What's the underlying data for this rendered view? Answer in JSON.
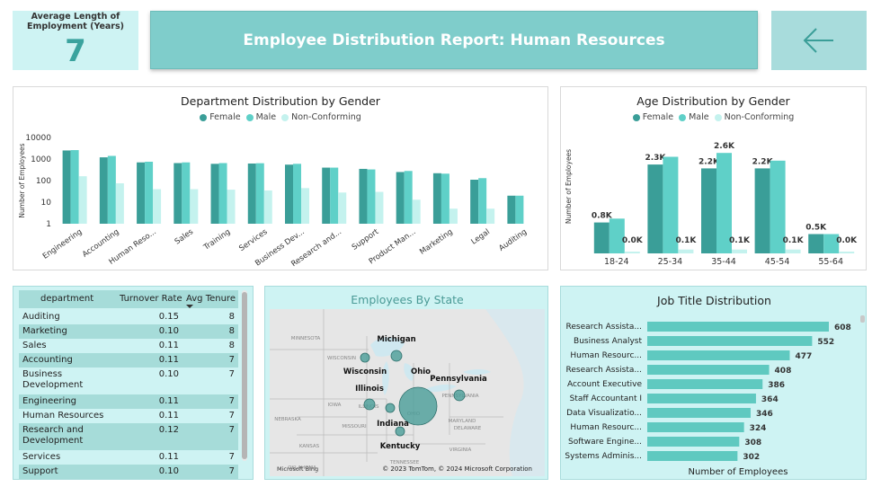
{
  "kpi": {
    "label": "Average Length of Employment (Years)",
    "value": "7"
  },
  "header": {
    "title": "Employee Distribution Report: Human Resources",
    "back_icon": "arrow-left-icon"
  },
  "colors": {
    "female": "#3a9e98",
    "male": "#5fd0c8",
    "nonconforming": "#c4f2ee",
    "teal_bg": "#cef3f3",
    "banner": "#7fcdcb",
    "bar": "#5fc9c0"
  },
  "legend": {
    "female": "Female",
    "male": "Male",
    "nonconforming": "Non-Conforming"
  },
  "dept_chart": {
    "title": "Department Distribution by Gender",
    "ylabel": "Number of Employees",
    "yticks": [
      "10000",
      "1000",
      "100",
      "10",
      "1"
    ]
  },
  "age_chart": {
    "title": "Age Distribution by Gender",
    "ylabel": "Number of Employees"
  },
  "chart_data": [
    {
      "type": "bar",
      "title": "Department Distribution by Gender",
      "ylabel": "Number of Employees",
      "yscale": "log",
      "ylim": [
        1,
        10000
      ],
      "categories": [
        "Engineering",
        "Accounting",
        "Human Reso...",
        "Sales",
        "Training",
        "Services",
        "Business Dev...",
        "Research and...",
        "Support",
        "Product Man...",
        "Marketing",
        "Legal",
        "Auditing"
      ],
      "series": [
        {
          "name": "Female",
          "values": [
            2500,
            1200,
            700,
            650,
            600,
            620,
            550,
            400,
            350,
            250,
            220,
            110,
            20
          ]
        },
        {
          "name": "Male",
          "values": [
            2600,
            1400,
            750,
            700,
            650,
            640,
            600,
            400,
            330,
            280,
            210,
            130,
            20
          ]
        },
        {
          "name": "Non-Conforming",
          "values": [
            160,
            75,
            40,
            40,
            38,
            35,
            45,
            28,
            30,
            13,
            5,
            5,
            0
          ]
        }
      ]
    },
    {
      "type": "bar",
      "title": "Age Distribution by Gender",
      "ylabel": "Number of Employees",
      "categories": [
        "18-24",
        "25-34",
        "35-44",
        "45-54",
        "55-64"
      ],
      "series": [
        {
          "name": "Female",
          "values": [
            0.8,
            2.3,
            2.2,
            2.2,
            0.5
          ],
          "labels": [
            "0.8K",
            "2.3K",
            "2.2K",
            "2.2K",
            "0.5K"
          ]
        },
        {
          "name": "Male",
          "values": [
            0.9,
            2.5,
            2.6,
            2.4,
            0.5
          ],
          "labels": [
            "",
            "",
            "2.6K",
            "",
            ""
          ]
        },
        {
          "name": "Non-Conforming",
          "values": [
            0.0,
            0.1,
            0.1,
            0.1,
            0.0
          ],
          "labels": [
            "0.0K",
            "0.1K",
            "0.1K",
            "0.1K",
            "0.0K"
          ]
        }
      ]
    },
    {
      "type": "bar",
      "title": "Job Title Distribution",
      "xlabel": "Number of Employees",
      "orientation": "horizontal",
      "categories": [
        "Research Assista...",
        "Business Analyst",
        "Human Resourc...",
        "Research Assista...",
        "Account Executive",
        "Staff Accountant I",
        "Data Visualizatio...",
        "Human Resourc...",
        "Software Engine...",
        "Systems Adminis..."
      ],
      "values": [
        608,
        552,
        477,
        408,
        386,
        364,
        346,
        324,
        308,
        302
      ]
    }
  ],
  "table": {
    "headers": [
      "department",
      "Turnover Rate",
      "Avg Tenure"
    ],
    "rows": [
      [
        "Auditing",
        "0.15",
        "8"
      ],
      [
        "Marketing",
        "0.10",
        "8"
      ],
      [
        "Sales",
        "0.11",
        "8"
      ],
      [
        "Accounting",
        "0.11",
        "7"
      ],
      [
        "Business Development",
        "0.10",
        "7"
      ],
      [
        "Engineering",
        "0.11",
        "7"
      ],
      [
        "Human Resources",
        "0.11",
        "7"
      ],
      [
        "Research and Development",
        "0.12",
        "7"
      ],
      [
        "Services",
        "0.11",
        "7"
      ],
      [
        "Support",
        "0.10",
        "7"
      ]
    ]
  },
  "map": {
    "title": "Employees By State",
    "states": [
      "Michigan",
      "Wisconsin",
      "Ohio",
      "Illinois",
      "Pennsylvania",
      "Indiana",
      "Kentucky"
    ],
    "faint_labels": [
      "MINNESOTA",
      "WISCONSIN",
      "IOWA",
      "NEBRASKA",
      "KANSAS",
      "OKLAHOMA",
      "MISSOURI",
      "ILLINOIS",
      "OHIO",
      "VIRGINIA",
      "DELAWARE",
      "MARYLAND",
      "TENNESSEE",
      "PENNSYLVANIA"
    ],
    "copyright": "© 2023 TomTom, © 2024 Microsoft Corporation",
    "brand": "Microsoft Bing"
  },
  "jobs": {
    "title": "Job Title Distribution",
    "xlabel": "Number of Employees"
  }
}
